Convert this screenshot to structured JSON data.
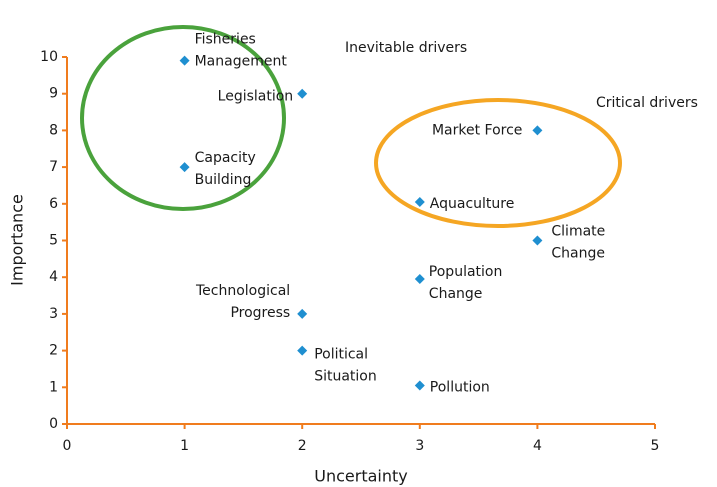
{
  "chart_data": {
    "type": "scatter",
    "xlabel": "Uncertainty",
    "ylabel": "Importance",
    "xlim": [
      0,
      5
    ],
    "xticks": [
      0,
      1,
      2,
      3,
      4,
      5
    ],
    "ylim": [
      0,
      10
    ],
    "yticks": [
      0,
      1,
      2,
      3,
      4,
      5,
      6,
      7,
      8,
      9,
      10
    ],
    "color": "#1f8fd0",
    "axis_color": "#f07c1e",
    "annotations": [
      {
        "text": "Inevitable drivers",
        "color": "#4aa23c"
      },
      {
        "text": "Critical drivers",
        "color": "#f5a623"
      }
    ],
    "points": [
      {
        "label": [
          "Fisheries",
          "Management"
        ],
        "x": 1,
        "y": 9.9
      },
      {
        "label": [
          "Legislation"
        ],
        "x": 2,
        "y": 9
      },
      {
        "label": [
          "Capacity",
          "Building"
        ],
        "x": 1,
        "y": 7
      },
      {
        "label": [
          "Market Force"
        ],
        "x": 4,
        "y": 8
      },
      {
        "label": [
          "Aquaculture"
        ],
        "x": 3,
        "y": 6.05
      },
      {
        "label": [
          "Climate",
          "Change"
        ],
        "x": 4,
        "y": 5
      },
      {
        "label": [
          "Population",
          "Change"
        ],
        "x": 3,
        "y": 3.95
      },
      {
        "label": [
          "Technological",
          "Progress"
        ],
        "x": 2,
        "y": 3
      },
      {
        "label": [
          "Political",
          "Situation"
        ],
        "x": 2,
        "y": 2
      },
      {
        "label": [
          "Pollution"
        ],
        "x": 3,
        "y": 1.05
      }
    ]
  }
}
